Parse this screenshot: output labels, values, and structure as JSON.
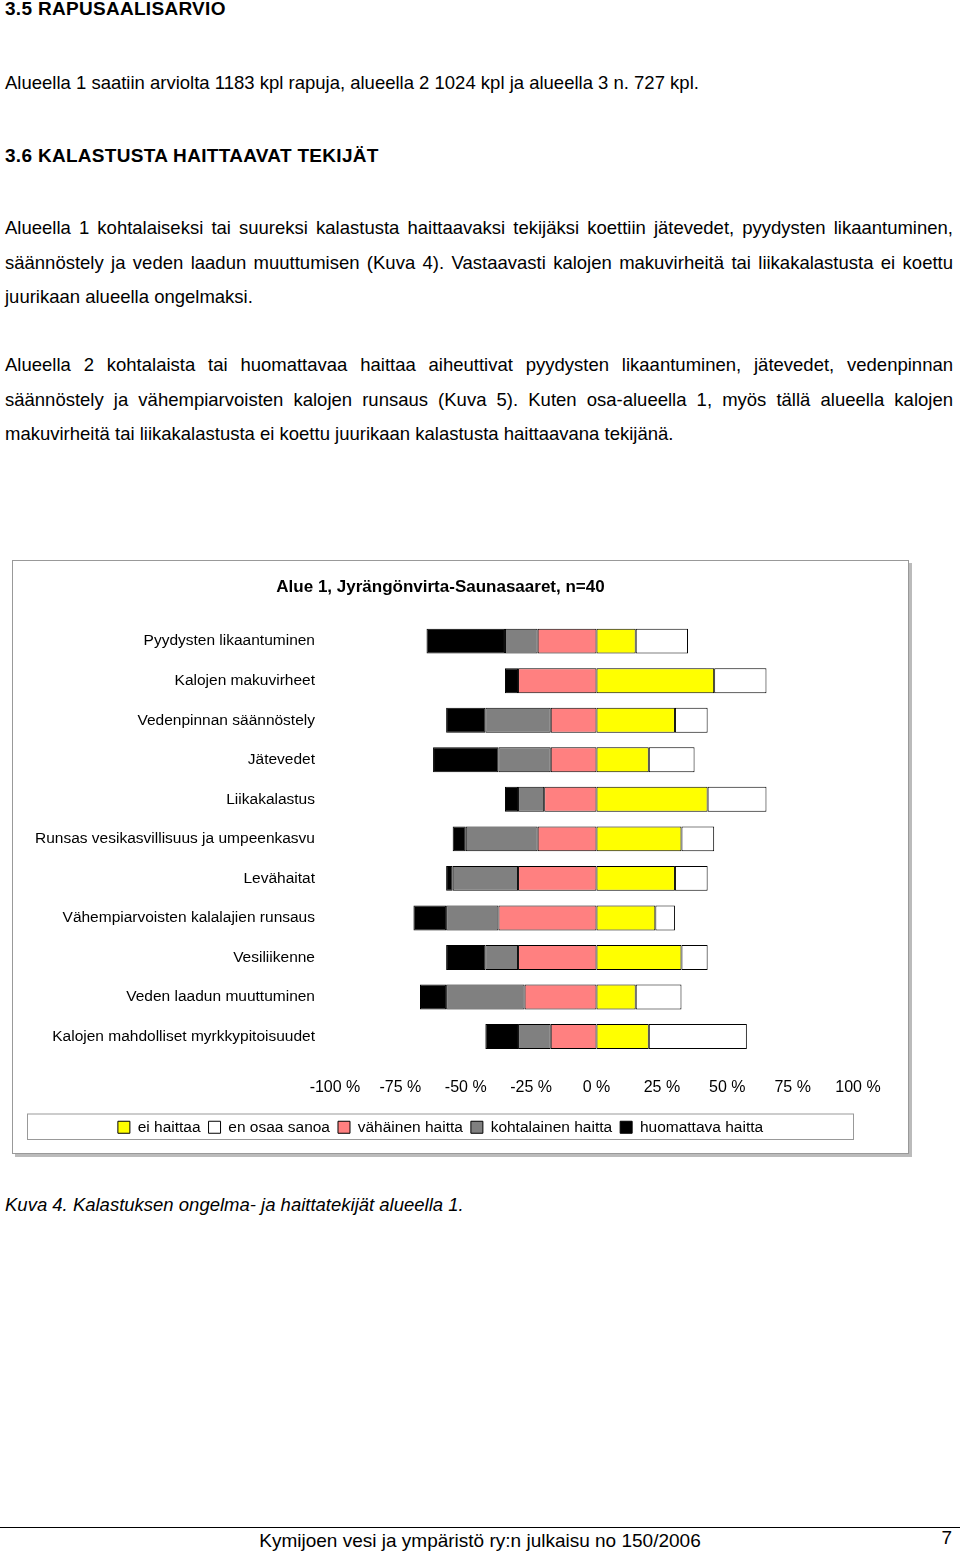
{
  "sections": [
    {
      "heading": "3.5 RAPUSAALISARVIO",
      "paragraphs": [
        "Alueella 1 saatiin arviolta 1183 kpl rapuja, alueella 2 1024 kpl ja alueella 3 n. 727 kpl."
      ]
    },
    {
      "heading": "3.6 KALASTUSTA HAITTAAVAT TEKIJÄT",
      "paragraphs": [
        "Alueella 1 kohtalaiseksi tai suureksi kalastusta haittaavaksi tekijäksi koettiin jätevedet, pyydysten likaantuminen, säännöstely ja veden laadun muuttumisen (Kuva 4). Vastaavasti kalojen makuvirheitä tai liikakalastusta ei koettu juurikaan alueella ongelmaksi.",
        "Alueella 2 kohtalaista tai huomattavaa haittaa aiheuttivat pyydysten likaantuminen, jätevedet, vedenpinnan säännöstely ja vähempiarvoisten kalojen runsaus (Kuva 5). Kuten osa-alueella 1, myös tällä alueella kalojen makuvirheitä tai liikakalastusta ei koettu juurikaan kalastusta haittaavana tekijänä."
      ]
    }
  ],
  "chart_data": {
    "type": "bar",
    "orientation": "horizontal",
    "stacked": true,
    "title": "Alue 1, Jyrängönvirta-Saunasaaret, n=40",
    "categories": [
      "Pyydysten likaantuminen",
      "Kalojen makuvirheet",
      "Vedenpinnan säännöstely",
      "Jätevedet",
      "Liikakalastus",
      "Runsas vesikasvillisuus ja umpeenkasvu",
      "Levähaitat",
      "Vähempiarvoisten kalalajien runsaus",
      "Vesiliikenne",
      "Veden laadun muuttuminen",
      "Kalojen mahdolliset myrkkypitoisuudet"
    ],
    "series": [
      {
        "name": "ei haittaa",
        "color": "#ffff00",
        "values": [
          15,
          45,
          30,
          20,
          42.5,
          32.5,
          30,
          22.5,
          32.5,
          15,
          20
        ]
      },
      {
        "name": "en osaa sanoa",
        "color": "#ffffff",
        "values": [
          20,
          20,
          12.5,
          17.5,
          22.5,
          12.5,
          12.5,
          7.5,
          10,
          17.5,
          37.5
        ]
      },
      {
        "name": "vähäinen haitta",
        "color": "#ff8080",
        "values": [
          -22.5,
          -30,
          -17.5,
          -17.5,
          -20,
          -22.5,
          -30,
          -37.5,
          -30,
          -27.5,
          -17.5
        ]
      },
      {
        "name": "kohtalainen haitta",
        "color": "#808080",
        "values": [
          -12.5,
          0,
          -25,
          -20,
          -10,
          -27.5,
          -25,
          -20,
          -12.5,
          -30,
          -12.5
        ]
      },
      {
        "name": "huomattava haitta",
        "color": "#000000",
        "values": [
          -30,
          -5,
          -15,
          -25,
          -5,
          -5,
          -2.5,
          -12.5,
          -15,
          -10,
          -12.5
        ]
      }
    ],
    "xlim": [
      -100,
      100
    ],
    "xticks": [
      {
        "value": -100,
        "label": "-100 %"
      },
      {
        "value": -75,
        "label": "-75 %"
      },
      {
        "value": -50,
        "label": "-50 %"
      },
      {
        "value": -25,
        "label": "-25 %"
      },
      {
        "value": 0,
        "label": "0 %"
      },
      {
        "value": 25,
        "label": "25 %"
      },
      {
        "value": 50,
        "label": "50 %"
      },
      {
        "value": 75,
        "label": "75 %"
      },
      {
        "value": 100,
        "label": "100 %"
      }
    ],
    "grid": false,
    "legend": "bottom"
  },
  "caption": "Kuva 4. Kalastuksen ongelma- ja haittatekijät alueella 1.",
  "footer": {
    "text": "Kymijoen vesi ja ympäristö ry:n julkaisu no 150/2006",
    "page": "7"
  }
}
